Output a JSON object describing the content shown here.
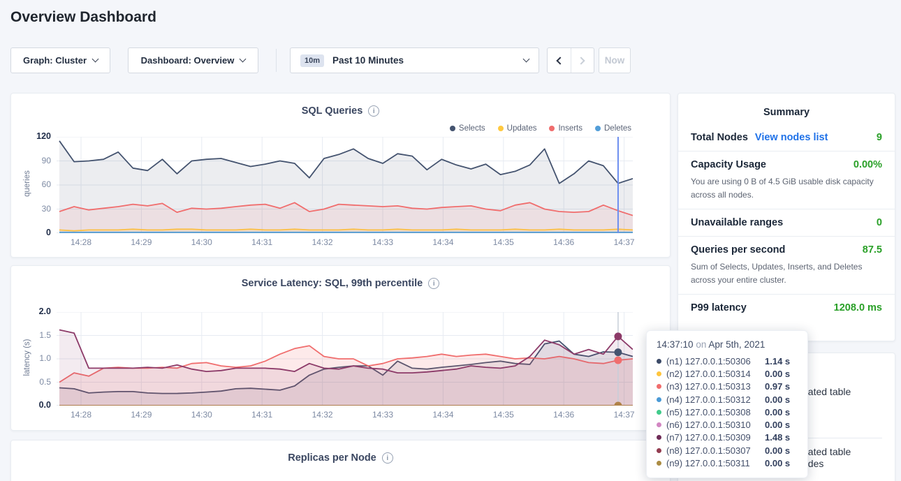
{
  "page": {
    "title": "Overview Dashboard"
  },
  "toolbar": {
    "graph_dropdown": "Graph: Cluster",
    "dashboard_dropdown": "Dashboard: Overview",
    "time_badge": "10m",
    "time_label": "Past 10 Minutes",
    "now_button": "Now"
  },
  "summary": {
    "title": "Summary",
    "total_nodes_label": "Total Nodes",
    "total_nodes_link": "View nodes list",
    "total_nodes_value": "9",
    "capacity_label": "Capacity Usage",
    "capacity_value": "0.00%",
    "capacity_desc": "You are using 0 B of 4.5 GiB usable disk capacity across all nodes.",
    "unavailable_label": "Unavailable ranges",
    "unavailable_value": "0",
    "qps_label": "Queries per second",
    "qps_value": "87.5",
    "qps_desc": "Sum of Selects, Updates, Inserts, and Deletes across your entire cluster.",
    "p99_label": "P99 latency",
    "p99_value": "1208.0 ms",
    "accent_green": "#2aa028",
    "link_blue": "#2072e8"
  },
  "events": {
    "fragments": [
      "eated table",
      "eated table",
      "odes"
    ]
  },
  "tooltip": {
    "time": "14:37:10",
    "preposition": "on",
    "date": "Apr 5th, 2021",
    "rows": [
      {
        "node": "(n1) 127.0.0.1:50306",
        "value": "1.14 s",
        "color": "#3b4a67"
      },
      {
        "node": "(n2) 127.0.0.1:50314",
        "value": "0.00 s",
        "color": "#ffc53e"
      },
      {
        "node": "(n3) 127.0.0.1:50313",
        "value": "0.97 s",
        "color": "#f16d6d"
      },
      {
        "node": "(n4) 127.0.0.1:50312",
        "value": "0.00 s",
        "color": "#4a9ad6"
      },
      {
        "node": "(n5) 127.0.0.1:50308",
        "value": "0.00 s",
        "color": "#41cb8b"
      },
      {
        "node": "(n6) 127.0.0.1:50310",
        "value": "0.00 s",
        "color": "#d286c2"
      },
      {
        "node": "(n7) 127.0.0.1:50309",
        "value": "1.48 s",
        "color": "#6e2b57"
      },
      {
        "node": "(n8) 127.0.0.1:50307",
        "value": "0.00 s",
        "color": "#933c50"
      },
      {
        "node": "(n9) 127.0.0.1:50311",
        "value": "0.00 s",
        "color": "#ab8c43"
      }
    ]
  },
  "chart_data": [
    {
      "type": "line",
      "title": "SQL Queries",
      "ylabel": "queries",
      "ylim": [
        0,
        120
      ],
      "yticks": [
        "0",
        "30",
        "60",
        "90",
        "120"
      ],
      "x_ticks": [
        "14:28",
        "14:29",
        "14:30",
        "14:31",
        "14:32",
        "14:33",
        "14:34",
        "14:35",
        "14:36",
        "14:37"
      ],
      "grid": true,
      "legend_position": "top-right",
      "hover": {
        "index": 38,
        "color": "#6d8ff0",
        "width": 2,
        "dots": false
      },
      "series": [
        {
          "name": "Selects",
          "color": "#44536f",
          "fill": "rgba(68,83,111,0.10)",
          "values": [
            115,
            89,
            90,
            92,
            101,
            81,
            78,
            92,
            74,
            90,
            92,
            93,
            88,
            83,
            86,
            90,
            87,
            69,
            93,
            98,
            105,
            93,
            87,
            99,
            96,
            79,
            92,
            85,
            80,
            86,
            73,
            77,
            85,
            105,
            62,
            74,
            90,
            84,
            62,
            68
          ]
        },
        {
          "name": "Updates",
          "color": "#ffc940",
          "fill": "rgba(255,201,64,0.12)",
          "values": [
            4,
            3,
            4,
            4,
            4,
            5,
            4,
            4,
            5,
            5,
            4,
            4,
            4,
            5,
            4,
            4,
            5,
            4,
            4,
            4,
            5,
            4,
            4,
            5,
            4,
            4,
            4,
            5,
            4,
            4,
            4,
            5,
            4,
            4,
            5,
            4,
            4,
            4,
            5,
            4
          ]
        },
        {
          "name": "Inserts",
          "color": "#f06d6d",
          "fill": "rgba(240,109,109,0.10)",
          "values": [
            27,
            33,
            29,
            31,
            33,
            36,
            34,
            37,
            26,
            31,
            30,
            31,
            33,
            35,
            36,
            31,
            38,
            27,
            30,
            36,
            35,
            34,
            33,
            34,
            31,
            30,
            32,
            33,
            34,
            30,
            28,
            35,
            38,
            30,
            27,
            26,
            27,
            35,
            28,
            22
          ]
        },
        {
          "name": "Deletes",
          "color": "#539ed8",
          "values": [
            1,
            1,
            1,
            1,
            1,
            1,
            1,
            1,
            1,
            1,
            1,
            1,
            1,
            1,
            1,
            1,
            1,
            1,
            1,
            1,
            1,
            1,
            1,
            1,
            1,
            1,
            1,
            1,
            1,
            1,
            1,
            1,
            1,
            1,
            1,
            1,
            1,
            1,
            1,
            1
          ]
        }
      ]
    },
    {
      "type": "line",
      "title": "Service Latency: SQL, 99th percentile",
      "ylabel": "latency (s)",
      "ylim": [
        0,
        2.0
      ],
      "yticks": [
        "0.0",
        "0.5",
        "1.0",
        "1.5",
        "2.0"
      ],
      "x_ticks": [
        "14:28",
        "14:29",
        "14:30",
        "14:31",
        "14:32",
        "14:33",
        "14:34",
        "14:35",
        "14:36",
        "14:37"
      ],
      "grid": true,
      "hover": {
        "index": 38,
        "color": "#c7ced9",
        "width": 1.5,
        "dots": true
      },
      "hover_time": "14:37:10",
      "series": [
        {
          "name": "(n1) 127.0.0.1:50306",
          "color": "#44536f",
          "fill": "rgba(68,83,111,0.10)",
          "dot": true,
          "values": [
            0.38,
            0.36,
            0.27,
            0.29,
            0.3,
            0.3,
            0.27,
            0.26,
            0.26,
            0.27,
            0.29,
            0.31,
            0.36,
            0.37,
            0.35,
            0.33,
            0.42,
            0.65,
            0.78,
            0.82,
            0.85,
            0.85,
            0.65,
            0.95,
            0.8,
            0.78,
            0.82,
            0.85,
            0.88,
            0.92,
            0.95,
            0.9,
            0.88,
            1.32,
            1.38,
            1.1,
            1.05,
            1.15,
            1.14,
            1.05
          ]
        },
        {
          "name": "(n2) 127.0.0.1:50314",
          "color": "#ffc53e",
          "flat": 0
        },
        {
          "name": "(n3) 127.0.0.1:50313",
          "color": "#f06d6d",
          "fill": "rgba(240,109,109,0.14)",
          "dot": true,
          "values": [
            0.5,
            0.7,
            0.63,
            0.8,
            0.82,
            0.8,
            0.8,
            0.82,
            0.8,
            0.9,
            0.92,
            0.85,
            0.82,
            0.85,
            0.95,
            1.1,
            1.22,
            1.28,
            1.05,
            1.0,
            1.0,
            0.85,
            0.9,
            1.0,
            1.02,
            1.05,
            1.1,
            1.05,
            1.08,
            1.1,
            1.05,
            1.0,
            1.02,
            1.0,
            1.05,
            1.0,
            0.92,
            0.9,
            0.97,
            1.0
          ]
        },
        {
          "name": "(n4) 127.0.0.1:50312",
          "color": "#4a9ad6",
          "flat": 0
        },
        {
          "name": "(n5) 127.0.0.1:50308",
          "color": "#41cb8b",
          "flat": 0
        },
        {
          "name": "(n6) 127.0.0.1:50310",
          "color": "#d286c2",
          "flat": 0
        },
        {
          "name": "(n7) 127.0.0.1:50309",
          "color": "#8c3a68",
          "fill": "rgba(140,58,104,0.10)",
          "dot": true,
          "values": [
            1.62,
            1.55,
            0.8,
            0.8,
            0.8,
            0.8,
            0.82,
            0.8,
            0.87,
            0.78,
            0.73,
            0.75,
            0.8,
            0.8,
            0.8,
            0.78,
            0.73,
            0.9,
            0.8,
            0.78,
            0.85,
            0.8,
            0.78,
            0.7,
            0.7,
            0.72,
            0.75,
            0.78,
            0.85,
            0.82,
            0.8,
            0.85,
            1.05,
            1.4,
            1.3,
            1.1,
            1.2,
            1.1,
            1.48,
            1.2
          ]
        },
        {
          "name": "(n8) 127.0.0.1:50307",
          "color": "#933c50",
          "flat": 0
        },
        {
          "name": "(n9) 127.0.0.1:50311",
          "color": "#b08248",
          "dot": true,
          "flat": 0
        }
      ]
    },
    {
      "type": "line",
      "title": "Replicas per Node"
    }
  ]
}
